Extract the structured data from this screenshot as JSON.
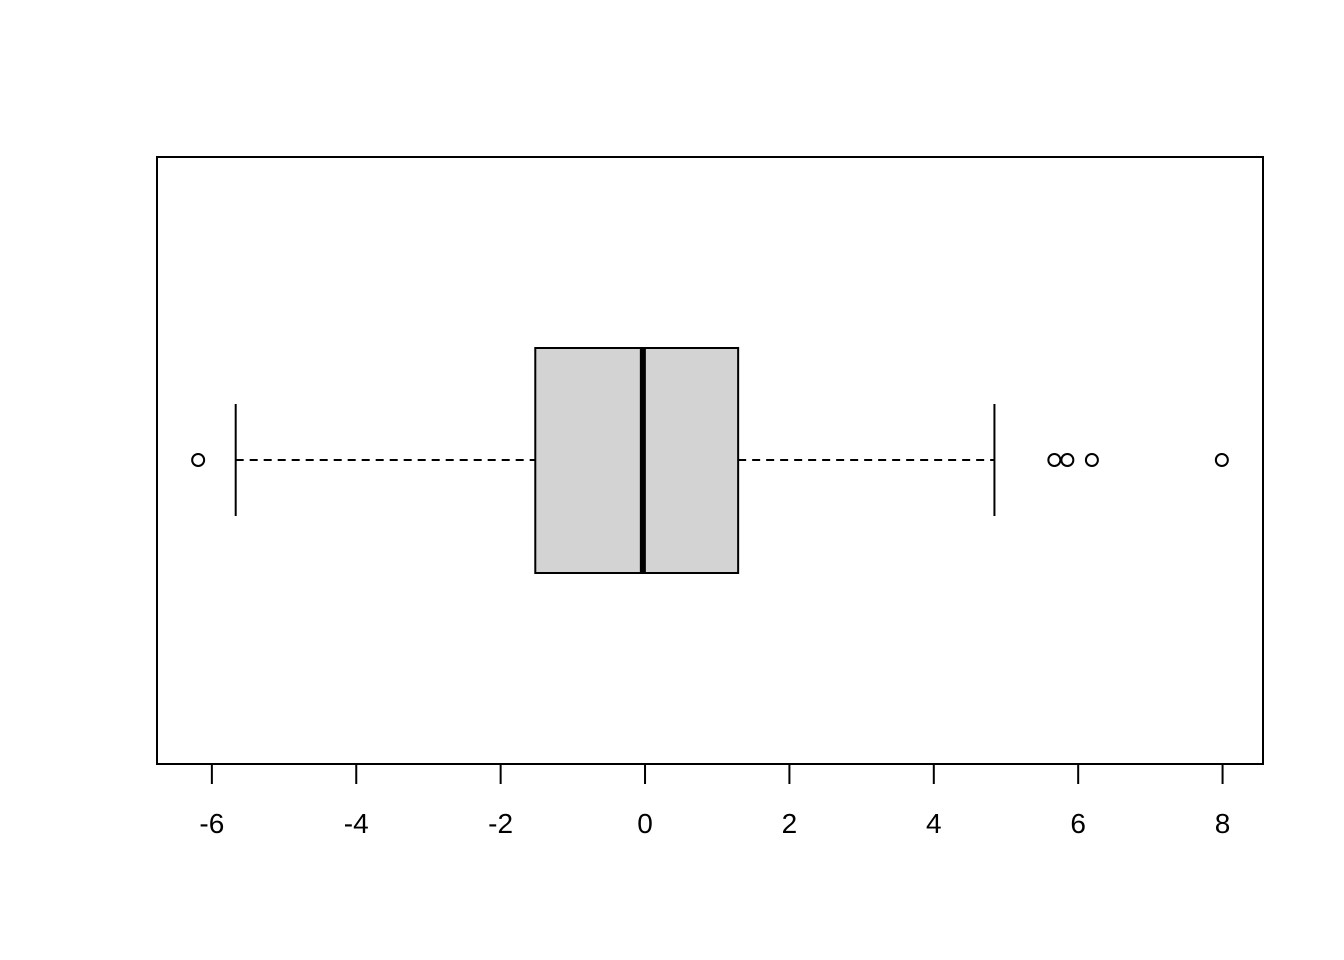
{
  "chart_data": {
    "type": "boxplot",
    "orientation": "horizontal",
    "title": "",
    "xlabel": "",
    "ylabel": "",
    "xlim": [
      -6.76,
      8.56
    ],
    "x_ticks": [
      -6,
      -4,
      -2,
      0,
      2,
      4,
      6,
      8
    ],
    "x_tick_labels": [
      "-6",
      "-4",
      "-2",
      "0",
      "2",
      "4",
      "6",
      "8"
    ],
    "box": {
      "whisker_low": -5.67,
      "q1": -1.52,
      "median": -0.03,
      "q3": 1.29,
      "whisker_high": 4.84,
      "outliers": [
        -6.19,
        5.67,
        5.85,
        6.19,
        7.99
      ]
    },
    "box_fill": "#d3d3d3",
    "grid": false
  }
}
